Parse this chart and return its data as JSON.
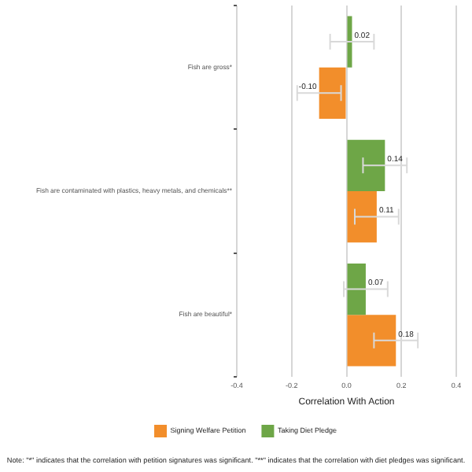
{
  "chart_data": {
    "type": "bar",
    "orientation": "horizontal",
    "xlabel": "Correlation With Action",
    "categories": [
      "Fish are gross*",
      "Fish are contaminated with plastics, heavy metals, and chemicals**",
      "Fish are beautiful*"
    ],
    "series": [
      {
        "name": "Signing Welfare Petition",
        "color": "#f28e2b",
        "values": [
          -0.1,
          0.11,
          0.18
        ],
        "errors": [
          0.08,
          0.08,
          0.08
        ],
        "value_labels": [
          "-0.10",
          "0.11",
          "0.18"
        ]
      },
      {
        "name": "Taking Diet Pledge",
        "color": "#6ea647",
        "values": [
          0.02,
          0.14,
          0.07
        ],
        "errors": [
          0.08,
          0.08,
          0.08
        ],
        "value_labels": [
          "0.02",
          "0.14",
          "0.07"
        ]
      }
    ],
    "xlim": [
      -0.4,
      0.4
    ],
    "xticks": [
      -0.4,
      -0.2,
      {
        "value": 0,
        "label": "0.0"
      },
      0.2,
      0.4
    ],
    "grid": "x",
    "legend": "bottom",
    "annotations": [
      "Note: \"*\" indicates that the correlation with petition signatures was significant. \"**\" indicates that the correlation with diet pledges was significant."
    ]
  }
}
